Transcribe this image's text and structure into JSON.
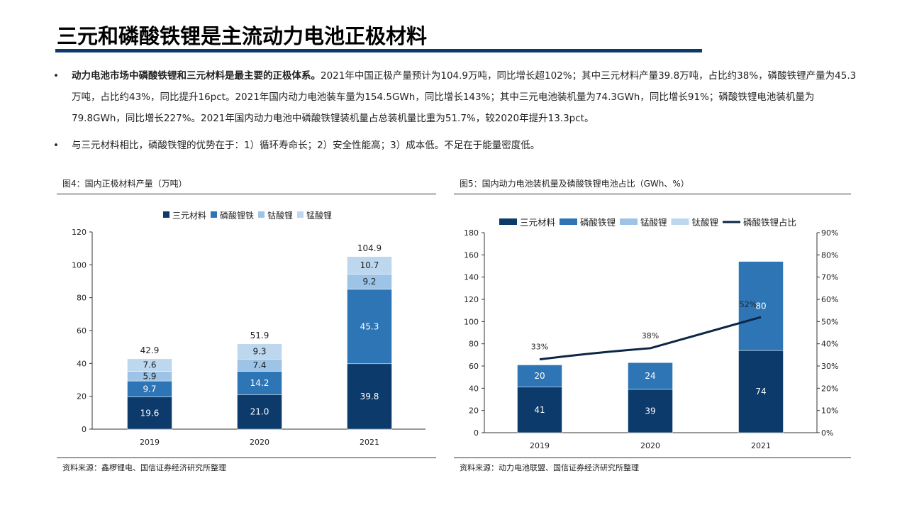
{
  "title": "三元和磷酸铁锂是主流动力电池正极材料",
  "bullets": [
    {
      "bold": "动力电池市场中磷酸铁锂和三元材料是最主要的正极体系。",
      "text": "2021年中国正极产量预计为104.9万吨，同比增长超102%；其中三元材料产量39.8万吨，占比约38%，磷酸铁锂产量为45.3万吨，占比约43%，同比提升16pct。2021年国内动力电池装车量为154.5GWh，同比增长143%；其中三元电池装机量为74.3GWh，同比增长91%；磷酸铁锂电池装机量为79.8GWh，同比增长227%。2021年国内动力电池中磷酸铁锂装机量占总装机量比重为51.7%，较2020年提升13.3pct。"
    },
    {
      "bold": "",
      "text": "与三元材料相比，磷酸铁锂的优势在于：1）循环寿命长；2）安全性能高；3）成本低。不足在于能量密度低。"
    }
  ],
  "chart_data": [
    {
      "type": "bar",
      "stacked": true,
      "title": "图4：国内正极材料产量（万吨）",
      "source": "资料来源：鑫椤锂电、国信证券经济研究所整理",
      "categories": [
        "2019",
        "2020",
        "2021"
      ],
      "series": [
        {
          "name": "三元材料",
          "color": "#0b3a6b",
          "values": [
            19.6,
            21.0,
            39.8
          ],
          "labels": [
            "19.6",
            "21.0",
            "39.8"
          ]
        },
        {
          "name": "磷酸锂铁",
          "color": "#2e75b6",
          "values": [
            9.7,
            14.2,
            45.3
          ],
          "labels": [
            "9.7",
            "14.2",
            "45.3"
          ]
        },
        {
          "name": "钴酸锂",
          "color": "#9dc3e6",
          "values": [
            5.9,
            7.4,
            9.2
          ],
          "labels": [
            "5.9",
            "7.4",
            "9.2"
          ]
        },
        {
          "name": "锰酸锂",
          "color": "#bdd7ee",
          "values": [
            7.6,
            9.3,
            10.7
          ],
          "labels": [
            "7.6",
            "9.3",
            "10.7"
          ]
        }
      ],
      "totals": [
        "42.9",
        "51.9",
        "104.9"
      ],
      "ylim": [
        0,
        120
      ],
      "yticks": [
        "0",
        "20",
        "40",
        "60",
        "80",
        "100",
        "120"
      ],
      "legend": "top"
    },
    {
      "type": "bar+line",
      "stacked": true,
      "title": "图5：国内动力电池装机量及磷酸铁锂电池占比（GWh、%）",
      "source": "资料来源：动力电池联盟、国信证券经济研究所整理",
      "categories": [
        "2019",
        "2020",
        "2021"
      ],
      "series": [
        {
          "name": "三元材料",
          "color": "#0b3a6b",
          "values": [
            41,
            39,
            74
          ],
          "labels": [
            "41",
            "39",
            "74"
          ]
        },
        {
          "name": "磷酸铁锂",
          "color": "#2e75b6",
          "values": [
            20,
            24,
            80
          ],
          "labels": [
            "20",
            "24",
            "80"
          ]
        },
        {
          "name": "锰酸锂",
          "color": "#9dc3e6",
          "values": [
            0.5,
            0.5,
            0.5
          ]
        },
        {
          "name": "钛酸锂",
          "color": "#bdd7ee",
          "values": [
            0,
            0,
            0
          ]
        }
      ],
      "line": {
        "name": "磷酸铁锂占比",
        "color": "#0b2545",
        "values": [
          33,
          38,
          52
        ],
        "labels": [
          "33%",
          "38%",
          "52%"
        ]
      },
      "ylim": [
        0,
        180
      ],
      "yticks": [
        "0",
        "20",
        "40",
        "60",
        "80",
        "100",
        "120",
        "140",
        "160",
        "180"
      ],
      "y2lim": [
        0,
        90
      ],
      "y2ticks": [
        "0%",
        "10%",
        "20%",
        "30%",
        "40%",
        "50%",
        "60%",
        "70%",
        "80%",
        "90%"
      ],
      "legend": "top"
    }
  ]
}
